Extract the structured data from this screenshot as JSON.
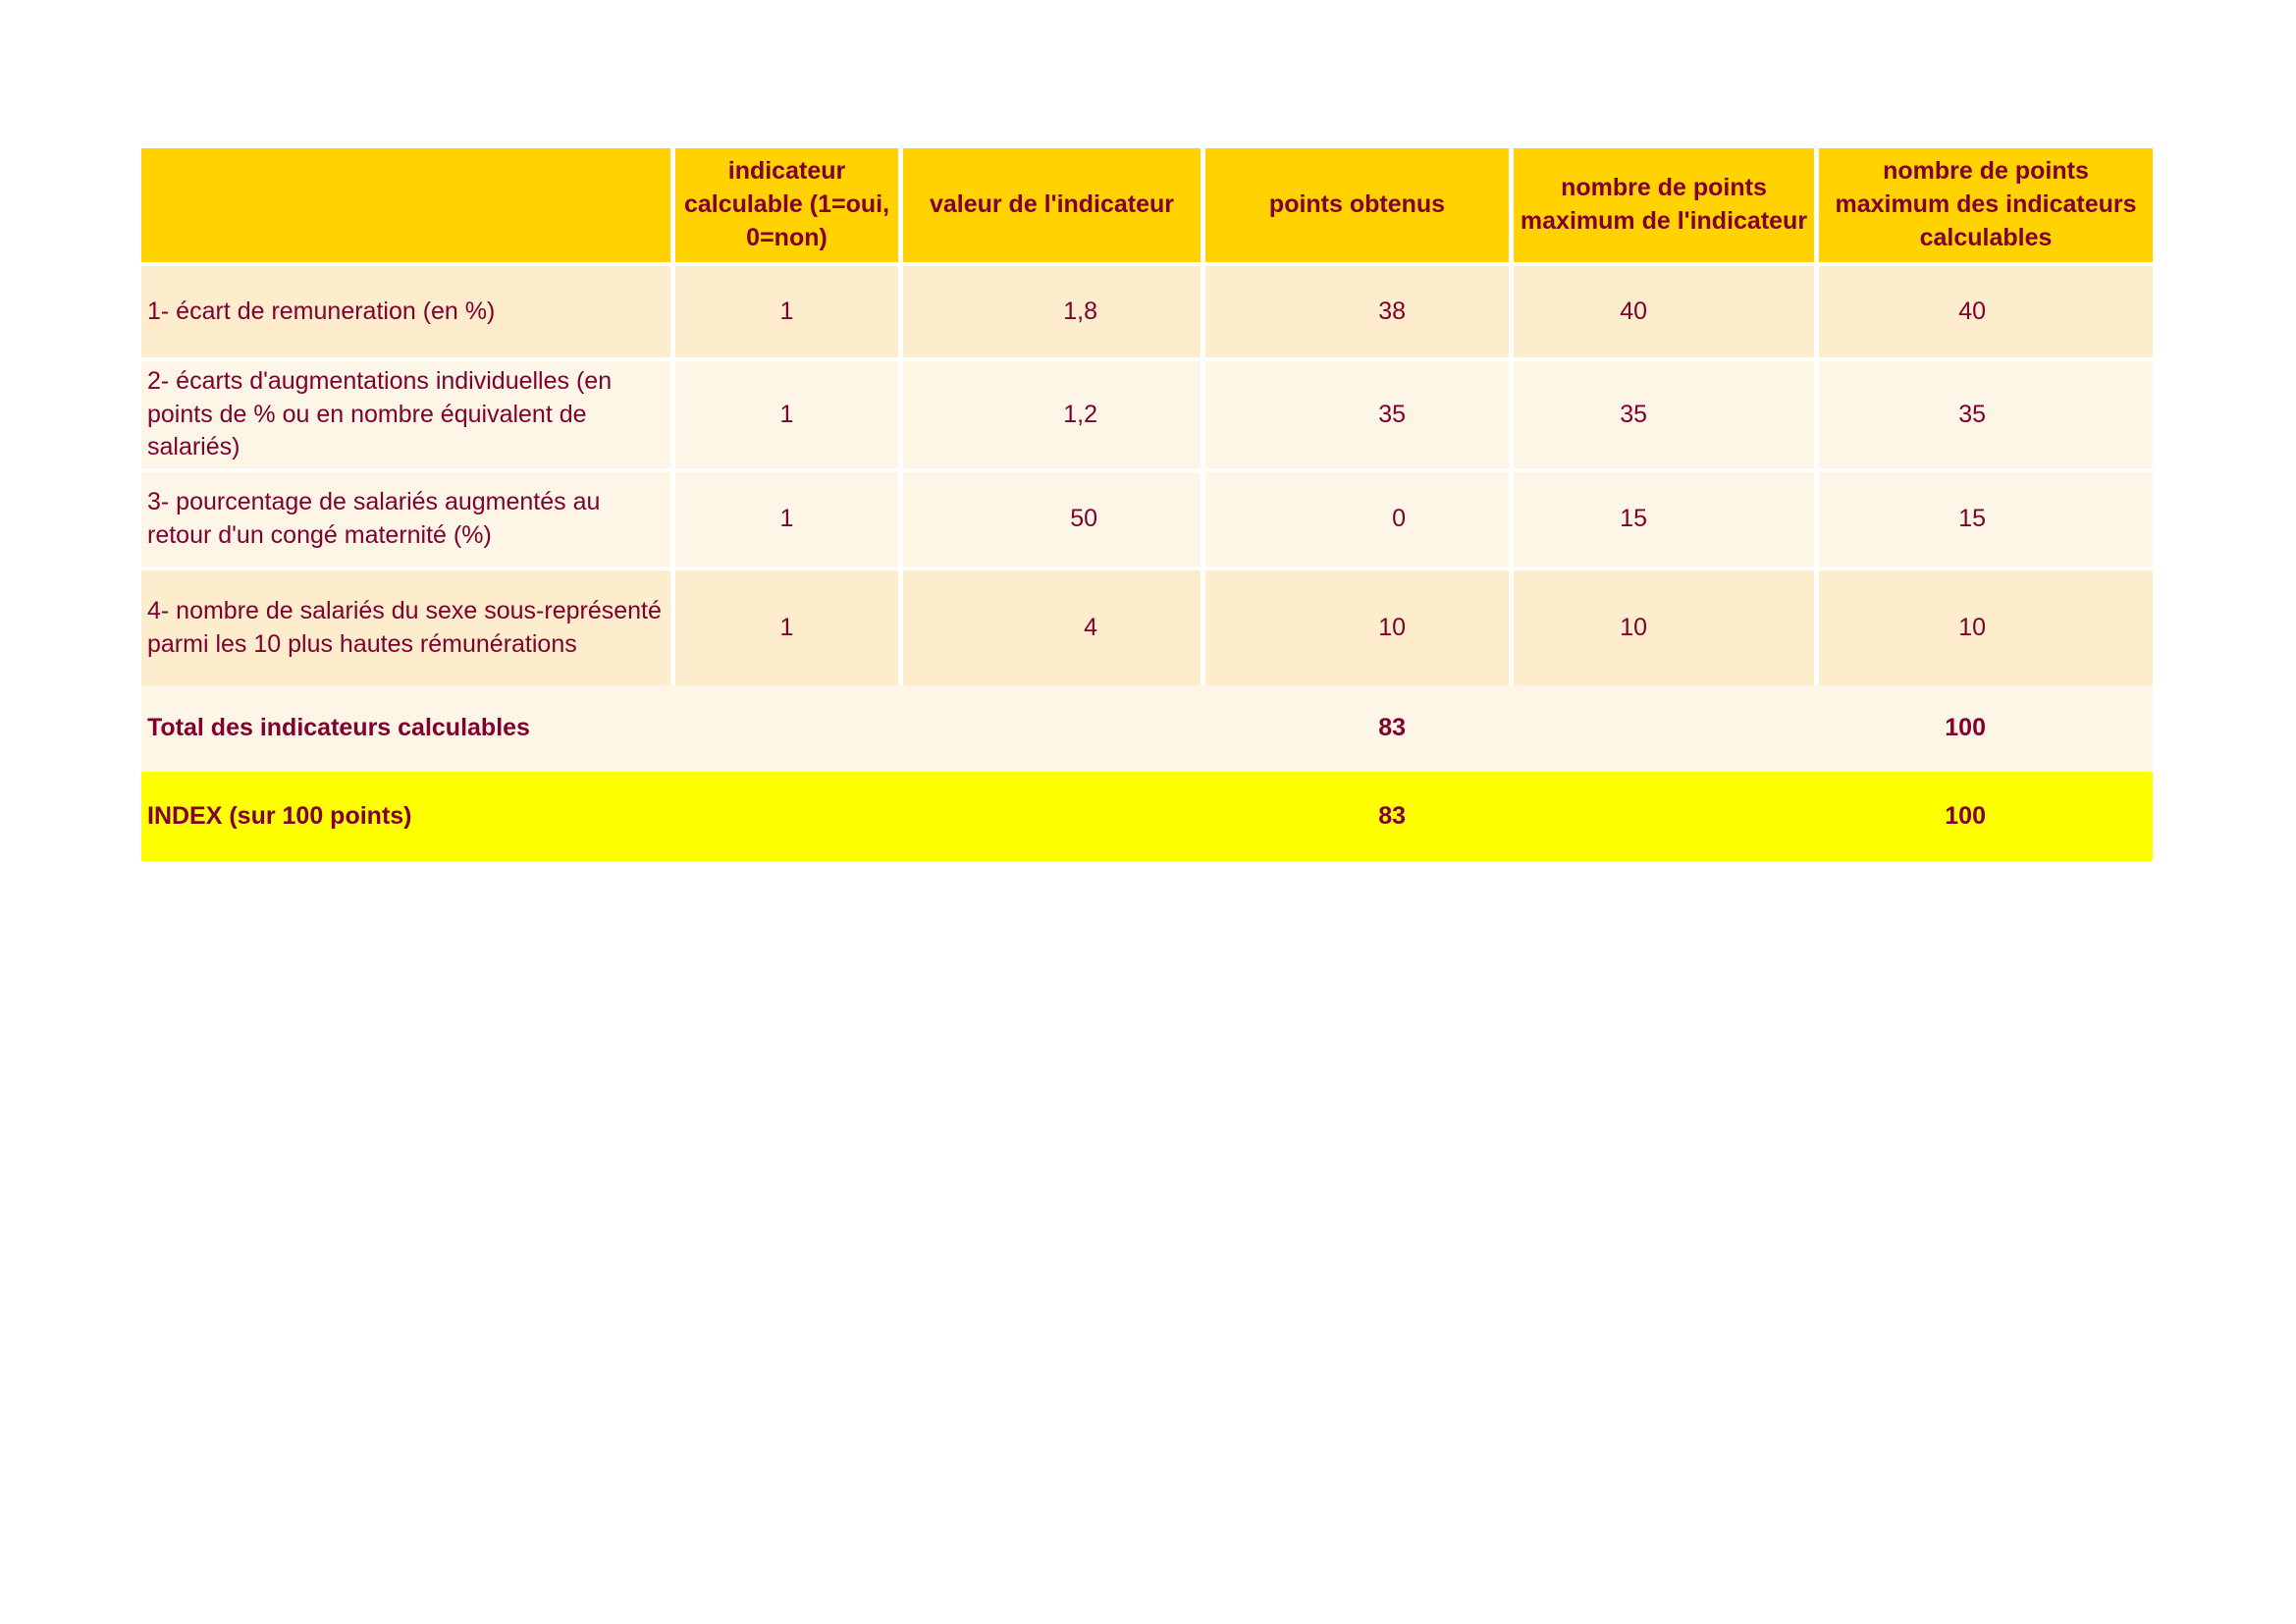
{
  "header": [
    "",
    "indicateur calculable (1=oui, 0=non)",
    "valeur de l'indicateur",
    "points obtenus",
    "nombre de points maximum de l'indicateur",
    "nombre de points maximum des indicateurs calculables"
  ],
  "rows": [
    {
      "label": "1- écart de remuneration (en %)",
      "calculable": "1",
      "valeur": "1,8",
      "points": "38",
      "max": "40",
      "max_calc": "40"
    },
    {
      "label": "2- écarts d'augmentations individuelles (en points de % ou en nombre équivalent de salariés)",
      "calculable": "1",
      "valeur": "1,2",
      "points": "35",
      "max": "35",
      "max_calc": "35"
    },
    {
      "label": "3- pourcentage de salariés augmentés au retour d'un congé maternité (%)",
      "calculable": "1",
      "valeur": "50",
      "points": "0",
      "max": "15",
      "max_calc": "15"
    },
    {
      "label": "4- nombre de salariés du sexe sous-représenté parmi les 10 plus hautes rémunérations",
      "calculable": "1",
      "valeur": "4",
      "points": "10",
      "max": "10",
      "max_calc": "10"
    }
  ],
  "total": {
    "label": "Total des indicateurs calculables",
    "points": "83",
    "max_calc": "100"
  },
  "index": {
    "label": "INDEX (sur 100 points)",
    "points": "83",
    "max_calc": "100"
  },
  "colors": {
    "header": "#FFD200",
    "row_dark": "#FDEDCC",
    "row_light": "#FDF6E6",
    "index": "#FFFF00",
    "text": "#800030"
  }
}
